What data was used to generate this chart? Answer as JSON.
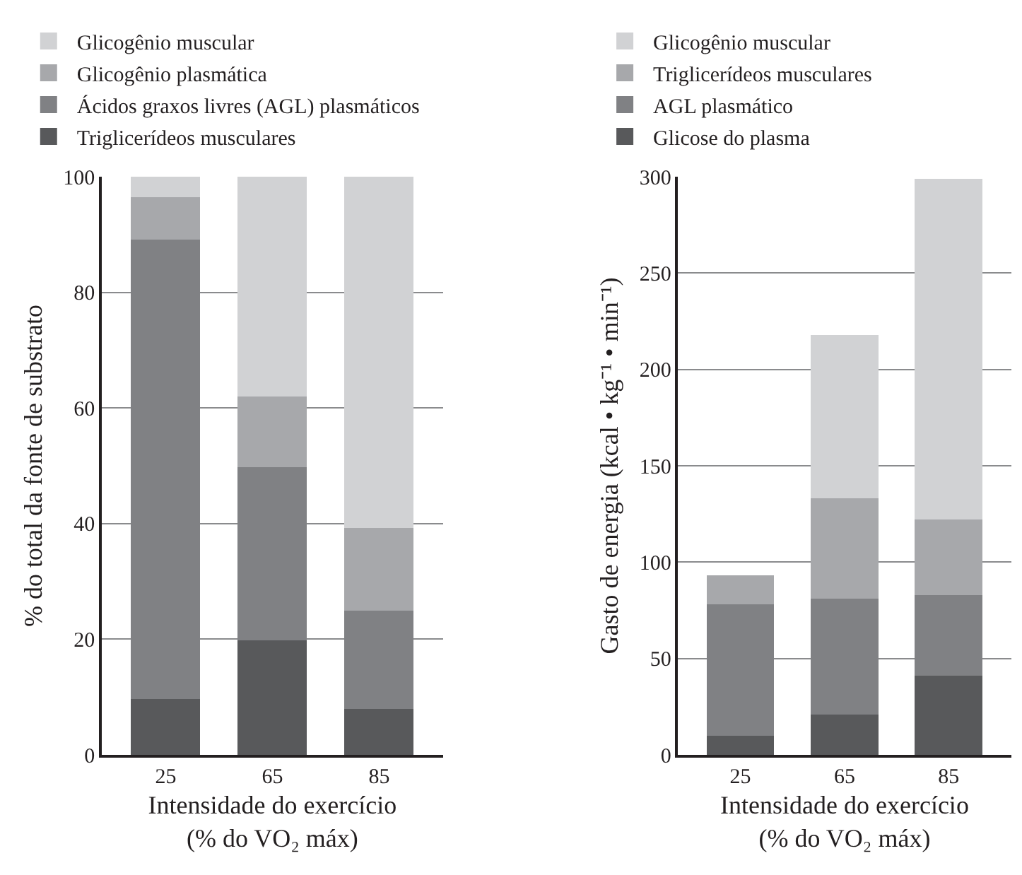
{
  "chart_data": [
    {
      "type": "bar",
      "stacked": true,
      "categories": [
        "25",
        "65",
        "85"
      ],
      "xlabel": "Intensidade do exercício\n(% do VO₂ máx)",
      "ylabel": "% do total da fonte de substrato",
      "ylim": [
        0,
        100
      ],
      "yticks": [
        0,
        20,
        40,
        60,
        80,
        100
      ],
      "grid": "y",
      "legend": "top",
      "series": [
        {
          "name": "Triglicerídeos musculares",
          "color": "#58595b",
          "values": [
            9.7,
            19.8,
            7.9
          ]
        },
        {
          "name": "Ácidos graxos livres (AGL) plasmáticos",
          "color": "#808184",
          "values": [
            79.4,
            29.9,
            17.0
          ]
        },
        {
          "name": "Glicogênio plasmática",
          "color": "#a7a8ab",
          "values": [
            7.3,
            12.3,
            14.3
          ]
        },
        {
          "name": "Glicogênio muscular",
          "color": "#d1d2d4",
          "values": [
            3.6,
            38.0,
            60.8
          ]
        }
      ]
    },
    {
      "type": "bar",
      "stacked": true,
      "categories": [
        "25",
        "65",
        "85"
      ],
      "xlabel": "Intensidade do exercício\n(% do VO₂ máx)",
      "ylabel": "Gasto de energia (kcal • kg⁻¹ • min⁻¹)",
      "ylim": [
        0,
        300
      ],
      "yticks": [
        0,
        50,
        100,
        150,
        200,
        250,
        300
      ],
      "grid": "y",
      "legend": "top",
      "series": [
        {
          "name": "Glicose do plasma",
          "color": "#58595b",
          "values": [
            10,
            21,
            41
          ]
        },
        {
          "name": "AGL plasmático",
          "color": "#808184",
          "values": [
            68,
            60,
            42
          ]
        },
        {
          "name": "Triglicerídeos musculares",
          "color": "#a7a8ab",
          "values": [
            15,
            52,
            39
          ]
        },
        {
          "name": "Glicogênio muscular",
          "color": "#d1d2d4",
          "values": [
            null,
            85,
            177
          ]
        }
      ]
    }
  ]
}
